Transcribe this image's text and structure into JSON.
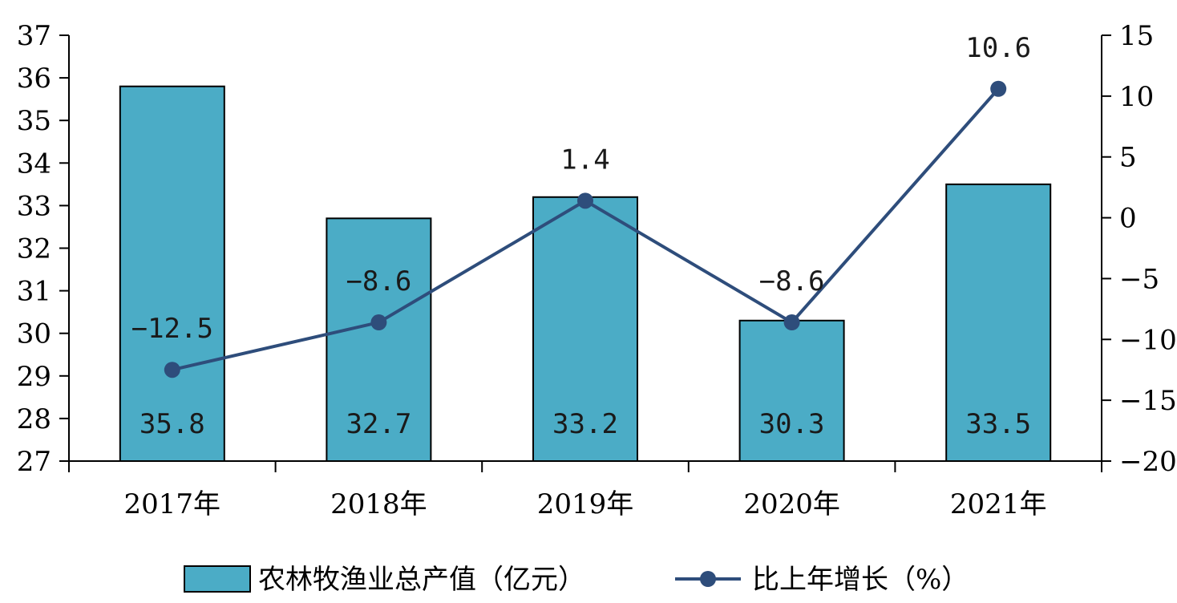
{
  "chart_data": {
    "type": "bar",
    "categories": [
      "2017年",
      "2018年",
      "2019年",
      "2020年",
      "2021年"
    ],
    "series": [
      {
        "name": "农林牧渔业总产值（亿元）",
        "type": "bar",
        "axis": "left",
        "values": [
          35.8,
          32.7,
          33.2,
          30.3,
          33.5
        ],
        "labels": [
          "35.8",
          "32.7",
          "33.2",
          "30.3",
          "33.5"
        ],
        "color": "#4bacc6"
      },
      {
        "name": "比上年增长（%）",
        "type": "line",
        "axis": "right",
        "values": [
          -12.5,
          -8.6,
          1.4,
          -8.6,
          10.6
        ],
        "labels": [
          "−12.5",
          "−8.6",
          "1.4",
          "−8.6",
          "10.6"
        ],
        "color": "#2e4d7b"
      }
    ],
    "y_left": {
      "range": [
        27,
        37
      ],
      "ticks": [
        27,
        28,
        29,
        30,
        31,
        32,
        33,
        34,
        35,
        36,
        37
      ],
      "tick_labels": [
        "27",
        "28",
        "29",
        "30",
        "31",
        "32",
        "33",
        "34",
        "35",
        "36",
        "37"
      ]
    },
    "y_right": {
      "range": [
        -20,
        15
      ],
      "ticks": [
        -20,
        -15,
        -10,
        -5,
        0,
        5,
        10,
        15
      ],
      "tick_labels": [
        "−20",
        "−15",
        "−10",
        "−5",
        "0",
        "5",
        "10",
        "15"
      ]
    },
    "grid": false,
    "legend": {
      "position": "bottom",
      "items": [
        "农林牧渔业总产值（亿元）",
        "比上年增长（%）"
      ]
    },
    "bar_edge_color": "#000000"
  }
}
